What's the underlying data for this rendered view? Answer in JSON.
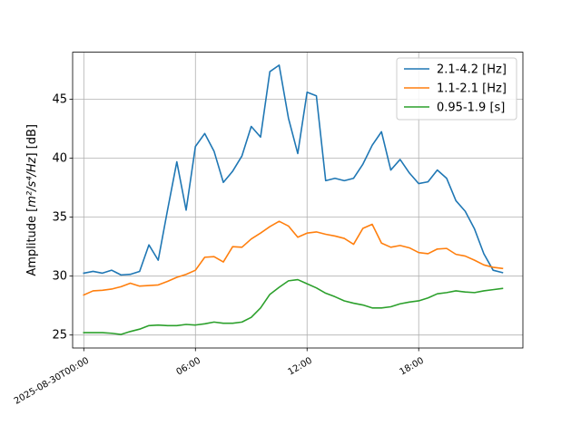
{
  "chart_data": {
    "type": "line",
    "title": "",
    "xlabel": "",
    "ylabel_prefix": "Amplitude [",
    "ylabel_math": "m²/s⁴/Hz",
    "ylabel_suffix": "] [dB]",
    "x_start": "2025-08-30T00:00",
    "x_step_minutes": 30,
    "xlim_hours": [
      -0.6,
      23.6
    ],
    "ylim": [
      23.9,
      49.0
    ],
    "x_ticks": [
      {
        "hour": 0,
        "label": "2025-08-30T00:00"
      },
      {
        "hour": 6,
        "label": "06:00"
      },
      {
        "hour": 12,
        "label": "12:00"
      },
      {
        "hour": 18,
        "label": "18:00"
      }
    ],
    "y_ticks": [
      25,
      30,
      35,
      40,
      45
    ],
    "grid": true,
    "legend_position": "top-right",
    "series": [
      {
        "name": "2.1-4.2 [Hz]",
        "color": "#1f77b4",
        "values": [
          30.25,
          30.4,
          30.25,
          30.5,
          30.1,
          30.15,
          30.4,
          32.65,
          31.35,
          35.6,
          39.7,
          35.6,
          41.0,
          42.1,
          40.6,
          37.95,
          38.9,
          40.2,
          42.7,
          41.8,
          47.35,
          47.9,
          43.4,
          40.4,
          45.6,
          45.3,
          38.1,
          38.3,
          38.1,
          38.3,
          39.5,
          41.1,
          42.25,
          39.0,
          39.9,
          38.75,
          37.85,
          38.0,
          39.0,
          38.3,
          36.4,
          35.5,
          34.0,
          31.9,
          30.5,
          30.3
        ]
      },
      {
        "name": "1.1-2.1 [Hz]",
        "color": "#ff7f0e",
        "values": [
          28.4,
          28.75,
          28.8,
          28.9,
          29.1,
          29.4,
          29.15,
          29.2,
          29.25,
          29.55,
          29.9,
          30.15,
          30.5,
          31.6,
          31.65,
          31.2,
          32.5,
          32.45,
          33.15,
          33.65,
          34.2,
          34.65,
          34.25,
          33.3,
          33.65,
          33.75,
          33.55,
          33.4,
          33.2,
          32.7,
          34.05,
          34.4,
          32.8,
          32.45,
          32.6,
          32.4,
          32.0,
          31.9,
          32.3,
          32.35,
          31.85,
          31.7,
          31.35,
          30.95,
          30.75,
          30.65
        ]
      },
      {
        "name": "0.95-1.9 [s]",
        "color": "#2ca02c",
        "values": [
          25.2,
          25.2,
          25.2,
          25.15,
          25.05,
          25.3,
          25.5,
          25.8,
          25.85,
          25.8,
          25.8,
          25.9,
          25.85,
          25.95,
          26.1,
          26.0,
          26.0,
          26.1,
          26.5,
          27.3,
          28.45,
          29.05,
          29.6,
          29.7,
          29.35,
          29.0,
          28.55,
          28.25,
          27.9,
          27.7,
          27.55,
          27.3,
          27.3,
          27.4,
          27.65,
          27.8,
          27.9,
          28.15,
          28.5,
          28.6,
          28.75,
          28.65,
          28.6,
          28.75,
          28.85,
          28.95
        ]
      }
    ]
  }
}
